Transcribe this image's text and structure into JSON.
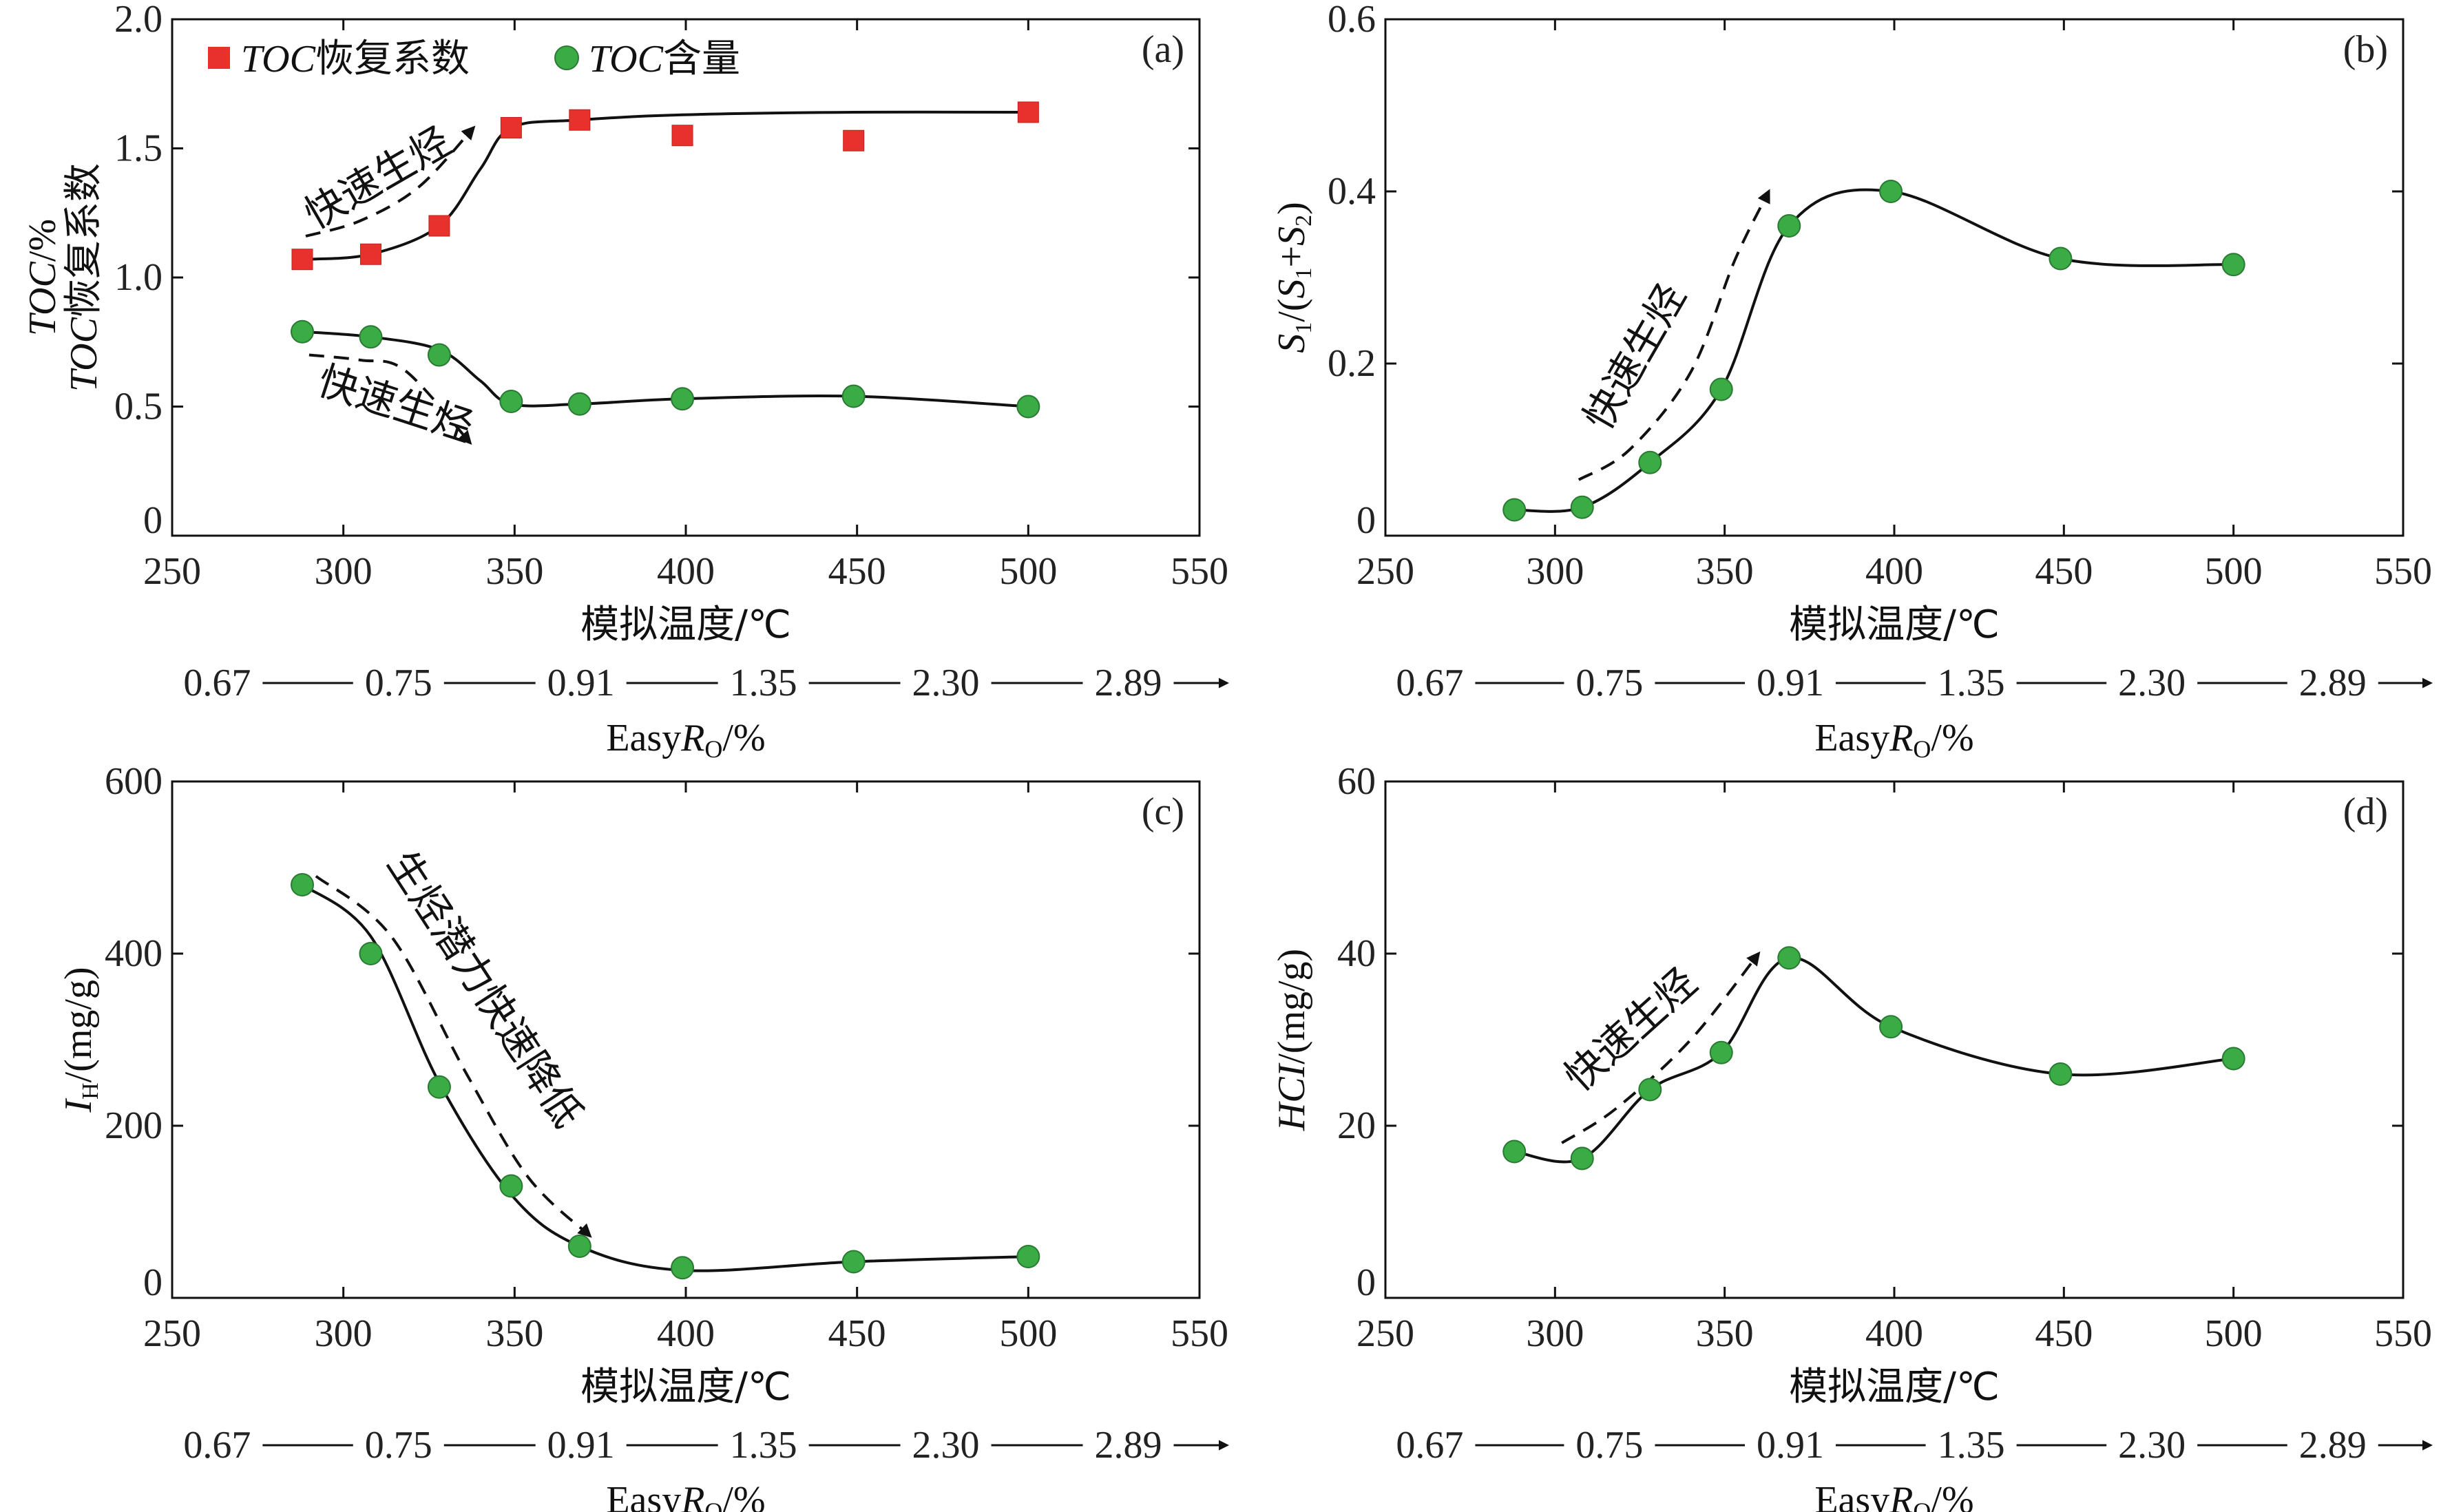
{
  "chart_data": [
    {
      "id": "a",
      "type": "scatter",
      "panel_label": "(a)",
      "xlabel": "模拟温度/℃",
      "ylabel_line1": "TOC/%",
      "ylabel_line2": "TOC恢复系数",
      "secondary_axis_label": "EasyRo/%",
      "xlim": [
        250,
        550
      ],
      "ylim": [
        0,
        2.0
      ],
      "xticks": [
        250,
        300,
        350,
        400,
        450,
        500,
        550
      ],
      "xtick_labels": [
        "250",
        "300",
        "350",
        "400",
        "450",
        "500",
        "550"
      ],
      "yticks": [
        0,
        0.5,
        1.0,
        1.5,
        2.0
      ],
      "ytick_labels": [
        "0",
        "0.5",
        "1.0",
        "1.5",
        "2.0"
      ],
      "easyro_labels": [
        "0.67",
        "0.75",
        "0.91",
        "1.35",
        "2.30",
        "2.89"
      ],
      "legend": [
        {
          "name": "TOC恢复系数",
          "marker": "square",
          "color": "#e8312c"
        },
        {
          "name": "TOC含量",
          "marker": "circle",
          "color": "#3aab45"
        }
      ],
      "series": [
        {
          "name": "TOC恢复系数",
          "marker": "square",
          "color": "#e8312c",
          "x": [
            288,
            308,
            328,
            349,
            369,
            399,
            449,
            500
          ],
          "y": [
            1.07,
            1.09,
            1.2,
            1.58,
            1.61,
            1.55,
            1.53,
            1.64
          ]
        },
        {
          "name": "TOC含量",
          "marker": "circle",
          "color": "#3aab45",
          "x": [
            288,
            308,
            328,
            349,
            369,
            399,
            449,
            500
          ],
          "y": [
            0.79,
            0.77,
            0.7,
            0.52,
            0.51,
            0.53,
            0.54,
            0.5
          ]
        }
      ],
      "curves": [
        {
          "x": [
            288,
            308,
            328,
            340,
            349,
            369,
            399,
            449,
            500
          ],
          "y": [
            1.07,
            1.09,
            1.2,
            1.42,
            1.58,
            1.61,
            1.63,
            1.64,
            1.64
          ]
        },
        {
          "x": [
            288,
            308,
            328,
            340,
            349,
            369,
            399,
            449,
            500
          ],
          "y": [
            0.79,
            0.77,
            0.72,
            0.6,
            0.51,
            0.51,
            0.53,
            0.54,
            0.5
          ]
        }
      ],
      "annotations": [
        {
          "text": "快速生烃",
          "x": 312,
          "y": 1.34,
          "rotate": -30
        },
        {
          "text": "快速生烃",
          "x": 314,
          "y": 0.46,
          "rotate": 18
        }
      ],
      "arrows": [
        {
          "x": [
            289,
            305,
            322,
            338
          ],
          "y": [
            1.16,
            1.22,
            1.35,
            1.58
          ]
        },
        {
          "x": [
            290,
            305,
            318,
            337
          ],
          "y": [
            0.7,
            0.68,
            0.64,
            0.36
          ]
        }
      ]
    },
    {
      "id": "b",
      "type": "scatter",
      "panel_label": "(b)",
      "xlabel": "模拟温度/℃",
      "ylabel": "S1/(S1+S2)",
      "secondary_axis_label": "EasyRo/%",
      "xlim": [
        250,
        550
      ],
      "ylim": [
        0,
        0.6
      ],
      "xticks": [
        250,
        300,
        350,
        400,
        450,
        500,
        550
      ],
      "xtick_labels": [
        "250",
        "300",
        "350",
        "400",
        "450",
        "500",
        "550"
      ],
      "yticks": [
        0,
        0.2,
        0.4,
        0.6
      ],
      "ytick_labels": [
        "0",
        "0.2",
        "0.4",
        "0.6"
      ],
      "easyro_labels": [
        "0.67",
        "0.75",
        "0.91",
        "1.35",
        "2.30",
        "2.89"
      ],
      "series": [
        {
          "name": "",
          "marker": "circle",
          "color": "#3aab45",
          "x": [
            288,
            308,
            328,
            349,
            369,
            399,
            449,
            500
          ],
          "y": [
            0.03,
            0.033,
            0.085,
            0.17,
            0.36,
            0.4,
            0.322,
            0.315
          ]
        }
      ],
      "curves": [
        {
          "x": [
            288,
            308,
            328,
            349,
            369,
            399,
            449,
            500
          ],
          "y": [
            0.03,
            0.033,
            0.085,
            0.17,
            0.36,
            0.4,
            0.322,
            0.315
          ]
        }
      ],
      "annotations": [
        {
          "text": "快速生烃",
          "x": 327,
          "y": 0.2,
          "rotate": -60
        }
      ],
      "arrows": [
        {
          "x": [
            307,
            322,
            340,
            353,
            363
          ],
          "y": [
            0.065,
            0.1,
            0.19,
            0.32,
            0.4
          ]
        }
      ]
    },
    {
      "id": "c",
      "type": "scatter",
      "panel_label": "(c)",
      "xlabel": "模拟温度/℃",
      "ylabel": "IH/(mg/g)",
      "secondary_axis_label": "EasyRo/%",
      "xlim": [
        250,
        550
      ],
      "ylim": [
        0,
        600
      ],
      "xticks": [
        250,
        300,
        350,
        400,
        450,
        500,
        550
      ],
      "xtick_labels": [
        "250",
        "300",
        "350",
        "400",
        "450",
        "500",
        "550"
      ],
      "yticks": [
        0,
        200,
        400,
        600
      ],
      "ytick_labels": [
        "0",
        "200",
        "400",
        "600"
      ],
      "easyro_labels": [
        "0.67",
        "0.75",
        "0.91",
        "1.35",
        "2.30",
        "2.89"
      ],
      "series": [
        {
          "name": "",
          "marker": "circle",
          "color": "#3aab45",
          "x": [
            288,
            308,
            328,
            349,
            369,
            399,
            449,
            500
          ],
          "y": [
            480,
            400,
            245,
            130,
            60,
            35,
            42,
            48
          ]
        }
      ],
      "curves": [
        {
          "x": [
            288,
            308,
            328,
            349,
            369,
            399,
            449,
            500
          ],
          "y": [
            480,
            420,
            250,
            120,
            60,
            32,
            42,
            48
          ]
        }
      ],
      "annotations": [
        {
          "text": "生烃潜力快速降低",
          "x": 338,
          "y": 350,
          "rotate": 57
        }
      ],
      "arrows": [
        {
          "x": [
            292,
            314,
            336,
            354,
            372
          ],
          "y": [
            490,
            420,
            260,
            140,
            72
          ]
        }
      ]
    },
    {
      "id": "d",
      "type": "scatter",
      "panel_label": "(d)",
      "xlabel": "模拟温度/℃",
      "ylabel": "HCI/(mg/g)",
      "secondary_axis_label": "EasyRo/%",
      "xlim": [
        250,
        550
      ],
      "ylim": [
        0,
        60
      ],
      "xticks": [
        250,
        300,
        350,
        400,
        450,
        500,
        550
      ],
      "xtick_labels": [
        "250",
        "300",
        "350",
        "400",
        "450",
        "500",
        "550"
      ],
      "yticks": [
        0,
        20,
        40,
        60
      ],
      "ytick_labels": [
        "0",
        "20",
        "40",
        "60"
      ],
      "easyro_labels": [
        "0.67",
        "0.75",
        "0.91",
        "1.35",
        "2.30",
        "2.89"
      ],
      "series": [
        {
          "name": "",
          "marker": "circle",
          "color": "#3aab45",
          "x": [
            288,
            308,
            328,
            349,
            369,
            399,
            449,
            500
          ],
          "y": [
            17,
            16.2,
            24.2,
            28.5,
            39.5,
            31.5,
            26,
            27.8
          ]
        }
      ],
      "curves": [
        {
          "x": [
            288,
            308,
            328,
            349,
            369,
            399,
            449,
            500
          ],
          "y": [
            17,
            16.2,
            24.2,
            28.5,
            39.5,
            31.5,
            26,
            27.8
          ]
        }
      ],
      "annotations": [
        {
          "text": "快速生烃",
          "x": 325,
          "y": 30.0,
          "rotate": -42
        }
      ],
      "arrows": [
        {
          "x": [
            302,
            318,
            340,
            360
          ],
          "y": [
            18,
            22,
            30,
            40
          ]
        }
      ]
    }
  ]
}
